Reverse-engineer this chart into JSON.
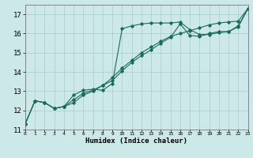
{
  "xlabel": "Humidex (Indice chaleur)",
  "ylabel": "",
  "background_color": "#cce8e8",
  "line_color": "#1a6b5a",
  "grid_color": "#aacccc",
  "xlim": [
    0,
    23
  ],
  "ylim": [
    11,
    17.5
  ],
  "yticks": [
    11,
    12,
    13,
    14,
    15,
    16,
    17
  ],
  "xticks": [
    0,
    1,
    2,
    3,
    4,
    5,
    6,
    7,
    8,
    9,
    10,
    11,
    12,
    13,
    14,
    15,
    16,
    17,
    18,
    19,
    20,
    21,
    22,
    23
  ],
  "line1_x": [
    0,
    1,
    2,
    3,
    4,
    5,
    6,
    7,
    8,
    9,
    10,
    11,
    12,
    13,
    14,
    15,
    16,
    17,
    18,
    19,
    20,
    21,
    22,
    23
  ],
  "line1_y": [
    11.3,
    12.5,
    12.4,
    12.1,
    12.2,
    12.8,
    13.05,
    13.1,
    13.05,
    13.4,
    16.25,
    16.4,
    16.5,
    16.55,
    16.55,
    16.55,
    16.6,
    16.2,
    15.95,
    15.95,
    16.05,
    16.1,
    16.4,
    17.3
  ],
  "line2_x": [
    0,
    1,
    2,
    3,
    4,
    5,
    6,
    7,
    8,
    9,
    10,
    11,
    12,
    13,
    14,
    15,
    16,
    17,
    18,
    19,
    20,
    21,
    22,
    23
  ],
  "line2_y": [
    11.3,
    12.5,
    12.4,
    12.1,
    12.2,
    12.4,
    12.8,
    13.0,
    13.3,
    13.7,
    14.2,
    14.6,
    15.0,
    15.3,
    15.6,
    15.85,
    16.0,
    16.15,
    16.3,
    16.45,
    16.55,
    16.6,
    16.65,
    17.3
  ],
  "line3_x": [
    0,
    1,
    2,
    3,
    4,
    5,
    6,
    7,
    8,
    9,
    10,
    11,
    12,
    13,
    14,
    15,
    16,
    17,
    18,
    19,
    20,
    21,
    22,
    23
  ],
  "line3_y": [
    11.3,
    12.5,
    12.4,
    12.1,
    12.2,
    12.55,
    12.9,
    13.05,
    13.3,
    13.55,
    14.05,
    14.5,
    14.85,
    15.15,
    15.5,
    15.8,
    16.5,
    15.9,
    15.85,
    16.0,
    16.1,
    16.1,
    16.35,
    17.3
  ]
}
